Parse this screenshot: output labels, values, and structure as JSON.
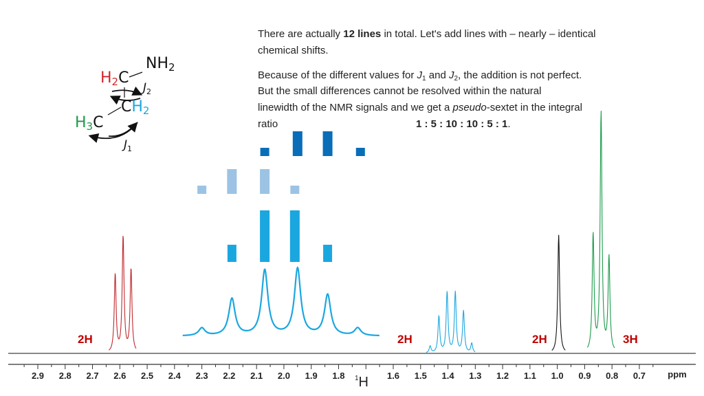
{
  "text": {
    "line1_pre": "There are actually ",
    "line1_bold": "12 lines",
    "line1_post": " in total. Let's add lines with – nearly – identical",
    "line2": "chemical shifts.",
    "p2_line1_a": "Because of the different values for ",
    "p2_line1_j1": "J",
    "p2_line1_j1sub": "1",
    "p2_line1_and": " and ",
    "p2_line1_j2": "J",
    "p2_line1_j2sub": "2",
    "p2_line1_b": ", the addition is not perfect.",
    "p2_line2": "But the small differences cannot be resolved within the natural",
    "p2_line3_a": "linewidth of the NMR signals and we get a ",
    "p2_line3_it": "pseudo",
    "p2_line3_b": "-sextet in the integral",
    "p2_line4": "ratio",
    "p2_ratio": "1 : 5 : 10 : 10 : 5 : 1",
    "p2_period": "."
  },
  "molecule": {
    "nh2": "NH",
    "nh2_sub": "2",
    "h2c_h": "H",
    "h2c_sub": "2",
    "h2c_c": "C",
    "ch2_c": "C",
    "ch2_h": "H",
    "ch2_sub": "2",
    "h3c_h": "H",
    "h3c_sub": "3",
    "h3c_c": "C",
    "j2": "J",
    "j2_sub": "2",
    "j1": "J",
    "j1_sub": "1"
  },
  "colors": {
    "red": "#c0282d",
    "blue": "#1aa7e0",
    "green": "#1a9a4a",
    "black": "#111111",
    "dark_blue": "#0a6db8",
    "light_blue": "#9cc3e4",
    "mid_blue": "#1aa7e0",
    "label_red": "#c00000"
  },
  "integrals": [
    "2H",
    "2H",
    "2H",
    "3H"
  ],
  "chart_data": {
    "type": "line",
    "xlabel": "1H",
    "xlabel_sup": "1",
    "xlabel_main": "H",
    "unit_label": "ppm",
    "xlim": [
      2.93,
      0.62
    ],
    "ticks": [
      2.9,
      2.8,
      2.7,
      2.6,
      2.5,
      2.4,
      2.3,
      2.2,
      2.1,
      2.0,
      1.9,
      1.8,
      1.6,
      1.5,
      1.4,
      1.3,
      1.2,
      1.1,
      1.0,
      0.9,
      0.8,
      0.7
    ],
    "tick_labels": [
      "2.9",
      "2.8",
      "2.7",
      "2.6",
      "2.5",
      "2.4",
      "2.3",
      "2.2",
      "2.1",
      "2.0",
      "1.9",
      "1.8",
      "1.6",
      "1.5",
      "1.4",
      "1.3",
      "1.2",
      "1.1",
      "1.0",
      "0.9",
      "0.8",
      "0.7"
    ],
    "series": [
      {
        "peaks": [
          {
            "x": 2.617,
            "h": 0.58
          },
          {
            "x": 2.588,
            "h": 0.86
          },
          {
            "x": 2.559,
            "h": 0.62
          }
        ]
      },
      {
        "peaks": [
          {
            "x": 1.465,
            "h": 0.05
          },
          {
            "x": 1.433,
            "h": 0.27
          },
          {
            "x": 1.403,
            "h": 0.45
          },
          {
            "x": 1.373,
            "h": 0.45
          },
          {
            "x": 1.343,
            "h": 0.31
          },
          {
            "x": 1.313,
            "h": 0.07
          }
        ]
      },
      {
        "peaks": [
          {
            "x": 0.995,
            "h": 0.88
          }
        ]
      },
      {
        "peaks": [
          {
            "x": 0.869,
            "h": 0.87
          },
          {
            "x": 0.84,
            "h": 1.78
          },
          {
            "x": 0.811,
            "h": 0.7
          }
        ]
      }
    ],
    "expanded_multiplet": {
      "peaks": [
        {
          "x": 2.3,
          "h": 0.1
        },
        {
          "x": 2.19,
          "h": 0.48
        },
        {
          "x": 2.07,
          "h": 0.85
        },
        {
          "x": 1.95,
          "h": 0.87
        },
        {
          "x": 1.84,
          "h": 0.53
        },
        {
          "x": 1.73,
          "h": 0.1
        }
      ]
    },
    "stick_rows": [
      {
        "row": "top",
        "positions": [
          2.07,
          1.95,
          1.84,
          1.72
        ],
        "intensities": [
          1,
          3,
          3,
          1
        ]
      },
      {
        "row": "middle",
        "positions": [
          2.3,
          2.19,
          2.07,
          1.96
        ],
        "intensities": [
          1,
          3,
          3,
          1
        ]
      },
      {
        "row": "bottom",
        "positions": [
          2.19,
          2.07,
          1.96,
          1.84
        ],
        "intensities": [
          1,
          3,
          3,
          1
        ]
      }
    ]
  }
}
